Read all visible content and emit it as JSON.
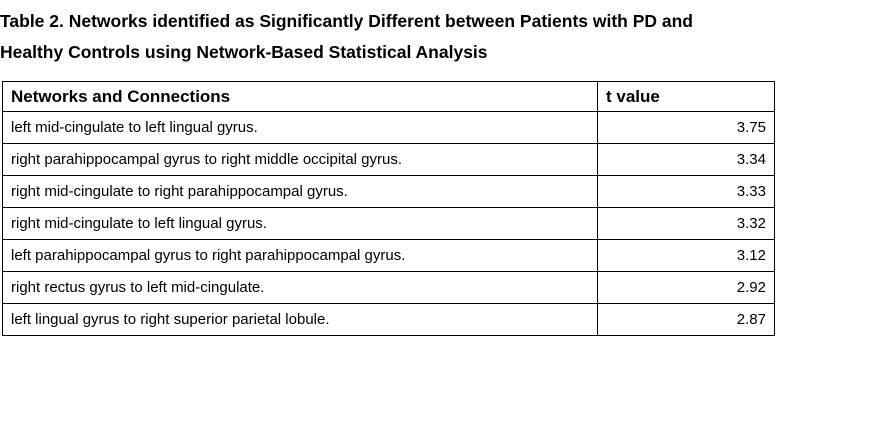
{
  "caption": {
    "line1": "Table 2. Networks identified as Significantly Different between Patients with PD and",
    "line2": "Healthy Controls using Network-Based Statistical Analysis"
  },
  "headers": [
    "Networks and Connections",
    "t value"
  ],
  "rows": [
    [
      "left mid-cingulate to left lingual gyrus.",
      "3.75"
    ],
    [
      "right parahippocampal gyrus to right middle occipital gyrus.",
      "3.34"
    ],
    [
      "right mid-cingulate to right parahippocampal gyrus.",
      "3.33"
    ],
    [
      "right mid-cingulate to left lingual gyrus.",
      "3.32"
    ],
    [
      "left parahippocampal gyrus to right parahippocampal gyrus.",
      "3.12"
    ],
    [
      "right rectus gyrus to left mid-cingulate.",
      "2.92"
    ],
    [
      "left lingual gyrus to right superior parietal lobule.",
      "2.87"
    ]
  ]
}
